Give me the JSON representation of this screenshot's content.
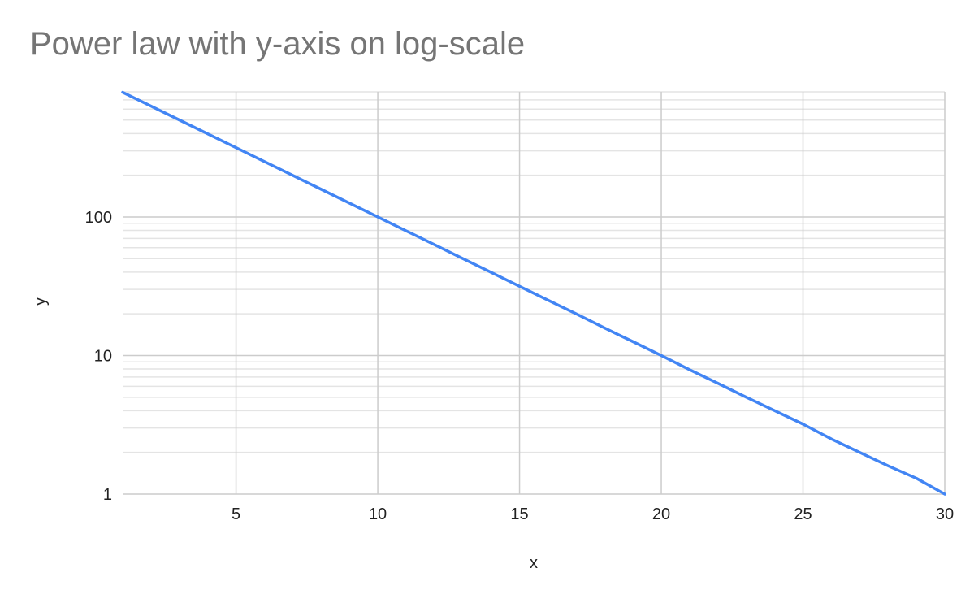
{
  "chart_data": {
    "type": "line",
    "title": "Power law with y-axis on log-scale",
    "xlabel": "x",
    "ylabel": "y",
    "xlim": [
      1,
      30
    ],
    "ylim": [
      1,
      800
    ],
    "yscale": "log",
    "grid": true,
    "legend": "none",
    "x_ticks": [
      5,
      10,
      15,
      20,
      25,
      30
    ],
    "x_tick_labels": [
      "5",
      "10",
      "15",
      "20",
      "25",
      "30"
    ],
    "y_ticks": [
      1,
      10,
      100
    ],
    "y_tick_labels": [
      "1",
      "10",
      "100"
    ],
    "colors": {
      "line": "#4285f4",
      "major_grid": "#cccccc",
      "minor_grid": "#e4e4e4",
      "title": "#757575"
    },
    "series": [
      {
        "x": [
          1,
          2,
          3,
          4,
          5,
          6,
          7,
          8,
          9,
          10,
          11,
          12,
          13,
          14,
          15,
          16,
          17,
          18,
          19,
          20,
          21,
          22,
          23,
          24,
          25,
          26,
          27,
          28,
          29,
          30
        ],
        "values": [
          794.3,
          631,
          501.2,
          398.1,
          316.2,
          251.2,
          199.5,
          158.5,
          125.9,
          100,
          79.4,
          63.1,
          50.1,
          39.8,
          31.6,
          25.1,
          20,
          15.8,
          12.6,
          10,
          7.9,
          6.3,
          5,
          4,
          3.2,
          2.5,
          2,
          1.6,
          1.3,
          1
        ]
      }
    ]
  }
}
